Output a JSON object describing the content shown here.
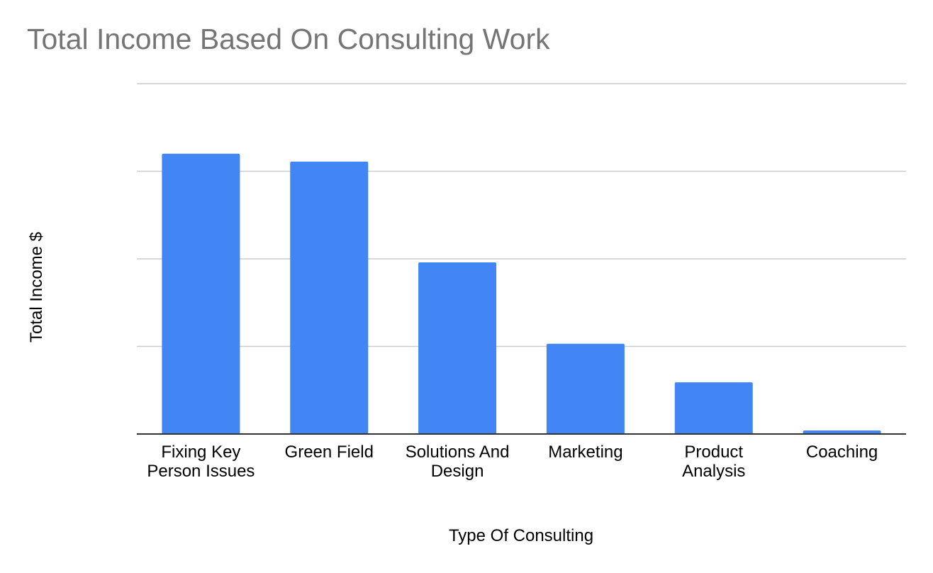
{
  "chart_data": {
    "type": "bar",
    "title": "Total Income Based On Consulting Work",
    "xlabel": "Type Of Consulting",
    "ylabel": "Total Income $",
    "categories": [
      "Fixing Key Person Issues",
      "Green Field",
      "Solutions And Design",
      "Marketing",
      "Product Analysis",
      "Coaching"
    ],
    "values": [
      3.2,
      3.11,
      1.96,
      1.03,
      0.59,
      0.04
    ],
    "ylim": [
      0,
      4
    ],
    "y_ticks_labeled": false,
    "grid": true,
    "legend": "none",
    "colors": {
      "bar": "#4285f4",
      "grid": "#cccccc",
      "axis": "#333333",
      "title": "#757575"
    }
  }
}
